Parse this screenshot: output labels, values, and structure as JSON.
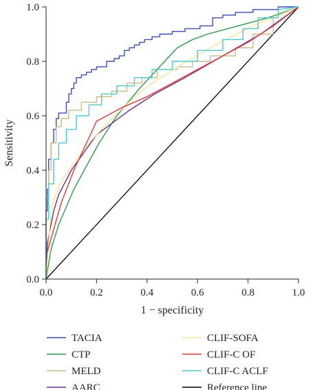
{
  "chart_data": {
    "type": "line",
    "xlabel": "1 − specificity",
    "ylabel": "Sensitivity",
    "xlim": [
      0,
      1
    ],
    "ylim": [
      0,
      1
    ],
    "xticks": [
      "0.0",
      "0.2",
      "0.4",
      "0.6",
      "0.8",
      "1.0"
    ],
    "yticks": [
      "0.0",
      "0.2",
      "0.4",
      "0.6",
      "0.8",
      "1.0"
    ],
    "grid": false,
    "legend_position": "bottom",
    "series": [
      {
        "name": "TACIA",
        "color": "#3b4cb5",
        "x": [
          0,
          0,
          0.005,
          0.005,
          0.01,
          0.01,
          0.02,
          0.02,
          0.03,
          0.03,
          0.04,
          0.04,
          0.05,
          0.05,
          0.08,
          0.08,
          0.09,
          0.09,
          0.1,
          0.1,
          0.11,
          0.11,
          0.12,
          0.12,
          0.14,
          0.14,
          0.16,
          0.16,
          0.18,
          0.18,
          0.2,
          0.2,
          0.24,
          0.24,
          0.27,
          0.27,
          0.29,
          0.29,
          0.31,
          0.31,
          0.33,
          0.33,
          0.35,
          0.35,
          0.37,
          0.37,
          0.39,
          0.39,
          0.42,
          0.42,
          0.45,
          0.45,
          0.5,
          0.5,
          0.55,
          0.55,
          0.61,
          0.61,
          0.66,
          0.66,
          0.7,
          0.7,
          0.75,
          0.75,
          0.82,
          0.82,
          0.92,
          0.92,
          1.0
        ],
        "y": [
          0,
          0.25,
          0.25,
          0.33,
          0.33,
          0.44,
          0.44,
          0.5,
          0.5,
          0.55,
          0.55,
          0.59,
          0.59,
          0.61,
          0.61,
          0.65,
          0.65,
          0.68,
          0.68,
          0.7,
          0.7,
          0.72,
          0.72,
          0.74,
          0.74,
          0.75,
          0.75,
          0.76,
          0.76,
          0.77,
          0.77,
          0.78,
          0.78,
          0.8,
          0.8,
          0.81,
          0.81,
          0.82,
          0.82,
          0.84,
          0.84,
          0.85,
          0.85,
          0.86,
          0.86,
          0.87,
          0.87,
          0.88,
          0.88,
          0.89,
          0.89,
          0.9,
          0.9,
          0.91,
          0.91,
          0.92,
          0.92,
          0.93,
          0.93,
          0.96,
          0.96,
          0.97,
          0.97,
          0.98,
          0.98,
          0.99,
          0.99,
          1.0,
          1.0
        ]
      },
      {
        "name": "CTP",
        "color": "#2e9a4a",
        "x": [
          0,
          0.02,
          0.05,
          0.11,
          0.21,
          0.28,
          0.37,
          0.46,
          0.52,
          0.58,
          0.64,
          0.72,
          0.8,
          0.88,
          0.94,
          1.0
        ],
        "y": [
          0,
          0.11,
          0.2,
          0.33,
          0.5,
          0.6,
          0.7,
          0.79,
          0.85,
          0.88,
          0.9,
          0.92,
          0.94,
          0.96,
          0.98,
          1.0
        ]
      },
      {
        "name": "MELD",
        "color": "#c8bb8a",
        "x": [
          0,
          0,
          0.01,
          0.01,
          0.02,
          0.02,
          0.04,
          0.04,
          0.06,
          0.06,
          0.09,
          0.09,
          0.14,
          0.14,
          0.2,
          0.2,
          0.26,
          0.26,
          0.32,
          0.32,
          0.38,
          0.38,
          0.44,
          0.44,
          0.52,
          0.52,
          0.58,
          0.58,
          0.65,
          0.65,
          0.75,
          0.75,
          0.82,
          0.82,
          0.9,
          0.9,
          1.0
        ],
        "y": [
          0,
          0.3,
          0.3,
          0.4,
          0.4,
          0.5,
          0.5,
          0.56,
          0.56,
          0.59,
          0.59,
          0.62,
          0.62,
          0.65,
          0.65,
          0.67,
          0.67,
          0.69,
          0.69,
          0.72,
          0.72,
          0.74,
          0.74,
          0.77,
          0.77,
          0.78,
          0.78,
          0.8,
          0.8,
          0.82,
          0.82,
          0.85,
          0.85,
          0.9,
          0.9,
          0.96,
          1.0
        ]
      },
      {
        "name": "AARC",
        "color": "#6a2c8c",
        "x": [
          0,
          0.005,
          0.03,
          0.05,
          0.1,
          0.2,
          0.33,
          0.43,
          0.55,
          0.7,
          0.85,
          1.0
        ],
        "y": [
          0.03,
          0.13,
          0.25,
          0.31,
          0.4,
          0.53,
          0.62,
          0.68,
          0.74,
          0.82,
          0.9,
          1.0
        ]
      },
      {
        "name": "CLIF-SOFA",
        "color": "#f2e79a",
        "x": [
          0,
          0.02,
          0.05,
          0.09,
          0.13,
          0.17,
          0.25,
          0.34,
          0.42,
          0.54,
          0.67,
          0.82,
          1.0
        ],
        "y": [
          0,
          0.26,
          0.34,
          0.4,
          0.45,
          0.5,
          0.58,
          0.66,
          0.72,
          0.79,
          0.86,
          0.93,
          1.0
        ]
      },
      {
        "name": "CLIF-C OF",
        "color": "#e03a3a",
        "x": [
          0,
          0.005,
          0.02,
          0.06,
          0.11,
          0.2,
          0.3,
          0.4,
          0.5,
          0.6,
          0.7,
          0.8,
          0.9,
          1.0
        ],
        "y": [
          0.1,
          0.1,
          0.15,
          0.28,
          0.4,
          0.58,
          0.63,
          0.67,
          0.72,
          0.77,
          0.82,
          0.87,
          0.93,
          1.0
        ]
      },
      {
        "name": "CLIF-C ACLF",
        "color": "#4cc7d3",
        "x": [
          0,
          0,
          0.01,
          0.01,
          0.03,
          0.03,
          0.05,
          0.05,
          0.08,
          0.08,
          0.12,
          0.12,
          0.17,
          0.17,
          0.22,
          0.22,
          0.28,
          0.28,
          0.35,
          0.35,
          0.42,
          0.42,
          0.5,
          0.5,
          0.6,
          0.6,
          0.7,
          0.7,
          0.78,
          0.78,
          0.84,
          0.84,
          0.92,
          0.92,
          1.0
        ],
        "y": [
          0,
          0.22,
          0.22,
          0.35,
          0.35,
          0.44,
          0.44,
          0.5,
          0.5,
          0.55,
          0.55,
          0.6,
          0.6,
          0.64,
          0.64,
          0.68,
          0.68,
          0.71,
          0.71,
          0.74,
          0.74,
          0.77,
          0.77,
          0.8,
          0.8,
          0.84,
          0.84,
          0.88,
          0.88,
          0.92,
          0.92,
          0.96,
          0.96,
          0.99,
          1.0
        ]
      },
      {
        "name": "Reference line",
        "color": "#000000",
        "x": [
          0,
          1
        ],
        "y": [
          0,
          1
        ]
      }
    ],
    "legend_order": [
      "TACIA",
      "CLIF-SOFA",
      "CTP",
      "CLIF-C OF",
      "MELD",
      "CLIF-C ACLF",
      "AARC",
      "Reference line"
    ]
  }
}
